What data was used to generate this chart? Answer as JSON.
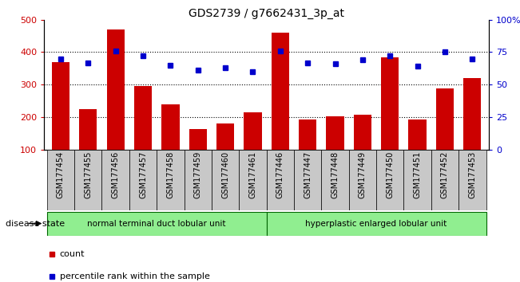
{
  "title": "GDS2739 / g7662431_3p_at",
  "samples": [
    "GSM177454",
    "GSM177455",
    "GSM177456",
    "GSM177457",
    "GSM177458",
    "GSM177459",
    "GSM177460",
    "GSM177461",
    "GSM177446",
    "GSM177447",
    "GSM177448",
    "GSM177449",
    "GSM177450",
    "GSM177451",
    "GSM177452",
    "GSM177453"
  ],
  "counts": [
    370,
    225,
    470,
    295,
    238,
    163,
    180,
    215,
    460,
    193,
    202,
    208,
    385,
    193,
    287,
    320
  ],
  "percentiles": [
    70,
    67,
    76,
    72,
    65,
    61,
    63,
    60,
    76,
    67,
    66,
    69,
    72,
    64,
    75,
    70
  ],
  "group1_label": "normal terminal duct lobular unit",
  "group2_label": "hyperplastic enlarged lobular unit",
  "group1_count": 8,
  "group2_count": 8,
  "bar_color": "#cc0000",
  "dot_color": "#0000cc",
  "ylim_left": [
    100,
    500
  ],
  "ylim_right": [
    0,
    100
  ],
  "yticks_left": [
    100,
    200,
    300,
    400,
    500
  ],
  "yticks_right": [
    0,
    25,
    50,
    75,
    100
  ],
  "ytick_labels_right": [
    "0",
    "25",
    "50",
    "75",
    "100%"
  ],
  "grid_lines": [
    200,
    300,
    400
  ],
  "disease_state_label": "disease state",
  "legend_count_label": "count",
  "legend_percentile_label": "percentile rank within the sample",
  "group1_color": "#90ee90",
  "group2_color": "#90ee90",
  "xtick_bg_color": "#c8c8c8",
  "group_border_color": "#006400"
}
